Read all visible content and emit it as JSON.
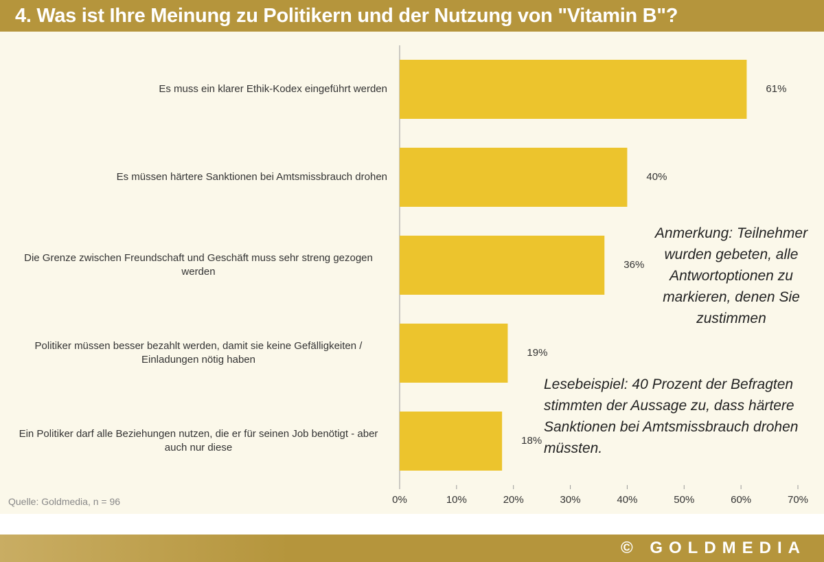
{
  "chart_data": {
    "type": "bar",
    "orientation": "horizontal",
    "title": "4. Was ist Ihre Meinung zu Politikern und der Nutzung von \"Vitamin B\"?",
    "categories": [
      "Es muss ein klarer Ethik-Kodex eingeführt werden",
      "Es müssen härtere Sanktionen bei Amtsmissbrauch drohen",
      "Die Grenze zwischen Freundschaft und Geschäft muss sehr streng gezogen werden",
      "Politiker müssen besser bezahlt werden, damit sie keine Gefälligkeiten / Einladungen nötig haben",
      "Ein Politiker darf alle Beziehungen nutzen, die er für seinen Job benötigt - aber auch nur diese"
    ],
    "values": [
      61,
      40,
      36,
      19,
      18
    ],
    "value_labels": [
      "61%",
      "40%",
      "36%",
      "19%",
      "18%"
    ],
    "color": "#ecc42d",
    "xlim": [
      0,
      70
    ],
    "xticks": [
      {
        "value": 0,
        "label": "0%"
      },
      {
        "value": 10,
        "label": "10%"
      },
      {
        "value": 20,
        "label": "20%"
      },
      {
        "value": 30,
        "label": "30%"
      },
      {
        "value": 40,
        "label": "40%"
      },
      {
        "value": 50,
        "label": "50%"
      },
      {
        "value": 60,
        "label": "60%"
      },
      {
        "value": 70,
        "label": "70%"
      }
    ],
    "grid": false,
    "annotations": [
      "Anmerkung: Teilnehmer wurden gebeten, alle Antwortoptionen zu markieren, denen Sie zustimmen",
      "Lesebeispiel: 40 Prozent der Befragten stimmten der Aussage zu, dass härtere Sanktionen bei Amtsmissbrauch drohen müssten."
    ],
    "source": "Quelle: Goldmedia, n = 96"
  },
  "footer": {
    "brand": "© GOLDMEDIA"
  }
}
